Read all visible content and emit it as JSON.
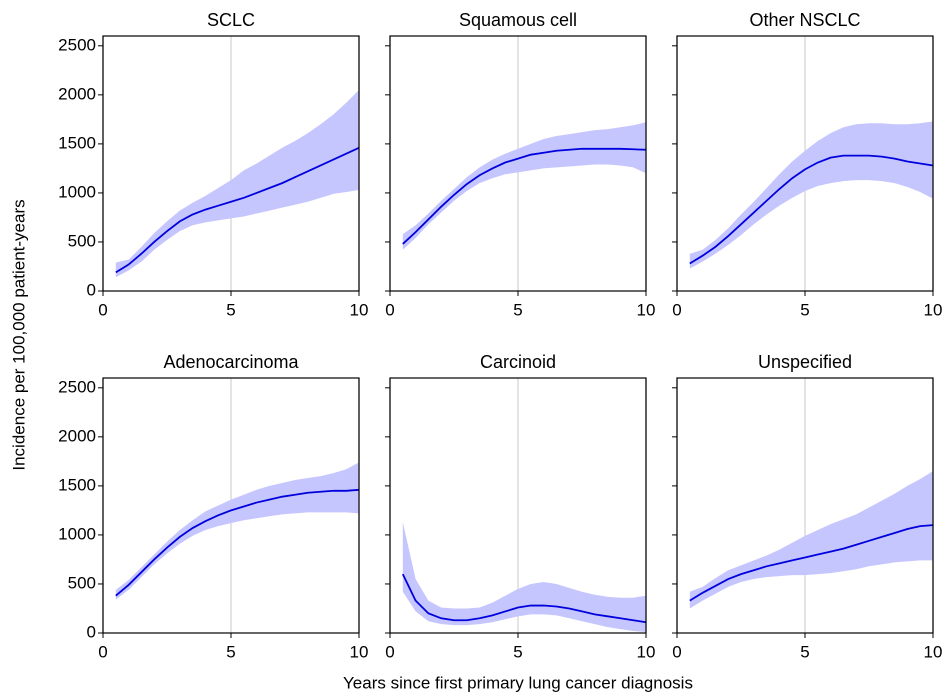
{
  "axis_labels": {
    "y": "Incidence per 100,000 patient-years",
    "x": "Years since first primary lung cancer diagnosis"
  },
  "chart_data": [
    {
      "type": "line",
      "title": "SCLC",
      "xlim": [
        0,
        10
      ],
      "ylim": [
        0,
        2600
      ],
      "xticks": [
        0,
        5,
        10
      ],
      "yticks": [
        0,
        500,
        1000,
        1500,
        2000,
        2500
      ],
      "grid": "x",
      "show_ytick_labels": true,
      "x": [
        0.5,
        1,
        1.5,
        2,
        2.5,
        3,
        3.5,
        4,
        4.5,
        5,
        5.5,
        6,
        6.5,
        7,
        7.5,
        8,
        8.5,
        9,
        9.5,
        10
      ],
      "series": [
        {
          "color": "#0000dd",
          "band_color": "#c6c6ff",
          "values": [
            190,
            270,
            380,
            500,
            610,
            710,
            780,
            830,
            870,
            910,
            950,
            1000,
            1050,
            1100,
            1160,
            1220,
            1280,
            1340,
            1400,
            1460
          ],
          "lower": [
            140,
            210,
            300,
            420,
            520,
            610,
            670,
            700,
            720,
            740,
            760,
            790,
            820,
            850,
            880,
            910,
            950,
            990,
            1010,
            1030
          ],
          "upper": [
            290,
            320,
            450,
            590,
            710,
            820,
            900,
            970,
            1050,
            1130,
            1230,
            1300,
            1380,
            1460,
            1530,
            1610,
            1700,
            1800,
            1920,
            2050
          ]
        }
      ]
    },
    {
      "type": "line",
      "title": "Squamous cell",
      "xlim": [
        0,
        10
      ],
      "ylim": [
        0,
        2600
      ],
      "xticks": [
        0,
        5,
        10
      ],
      "yticks": [
        0,
        500,
        1000,
        1500,
        2000,
        2500
      ],
      "grid": "x",
      "show_ytick_labels": false,
      "x": [
        0.5,
        1,
        1.5,
        2,
        2.5,
        3,
        3.5,
        4,
        4.5,
        5,
        5.5,
        6,
        6.5,
        7,
        7.5,
        8,
        8.5,
        9,
        9.5,
        10
      ],
      "series": [
        {
          "color": "#0000dd",
          "band_color": "#c6c6ff",
          "values": [
            480,
            600,
            730,
            860,
            980,
            1090,
            1180,
            1250,
            1310,
            1350,
            1390,
            1410,
            1430,
            1440,
            1450,
            1450,
            1450,
            1450,
            1445,
            1440
          ],
          "lower": [
            420,
            540,
            680,
            800,
            920,
            1020,
            1100,
            1150,
            1190,
            1210,
            1230,
            1250,
            1260,
            1270,
            1280,
            1290,
            1290,
            1280,
            1260,
            1200
          ],
          "upper": [
            580,
            670,
            790,
            920,
            1040,
            1160,
            1260,
            1340,
            1400,
            1450,
            1500,
            1550,
            1580,
            1600,
            1620,
            1640,
            1650,
            1670,
            1690,
            1720
          ]
        }
      ]
    },
    {
      "type": "line",
      "title": "Other NSCLC",
      "xlim": [
        0,
        10
      ],
      "ylim": [
        0,
        2600
      ],
      "xticks": [
        0,
        5,
        10
      ],
      "yticks": [
        0,
        500,
        1000,
        1500,
        2000,
        2500
      ],
      "grid": "x",
      "show_ytick_labels": false,
      "x": [
        0.5,
        1,
        1.5,
        2,
        2.5,
        3,
        3.5,
        4,
        4.5,
        5,
        5.5,
        6,
        6.5,
        7,
        7.5,
        8,
        8.5,
        9,
        9.5,
        10
      ],
      "series": [
        {
          "color": "#0000dd",
          "band_color": "#c6c6ff",
          "values": [
            280,
            360,
            450,
            560,
            680,
            800,
            920,
            1040,
            1150,
            1240,
            1310,
            1360,
            1380,
            1380,
            1380,
            1370,
            1350,
            1320,
            1300,
            1280
          ],
          "lower": [
            230,
            300,
            380,
            470,
            570,
            680,
            780,
            870,
            950,
            1020,
            1070,
            1100,
            1120,
            1130,
            1130,
            1120,
            1100,
            1060,
            1010,
            940
          ],
          "upper": [
            380,
            420,
            520,
            640,
            780,
            910,
            1050,
            1190,
            1320,
            1430,
            1530,
            1610,
            1670,
            1700,
            1710,
            1710,
            1700,
            1700,
            1710,
            1730
          ]
        }
      ]
    },
    {
      "type": "line",
      "title": "Adenocarcinoma",
      "xlim": [
        0,
        10
      ],
      "ylim": [
        0,
        2600
      ],
      "xticks": [
        0,
        5,
        10
      ],
      "yticks": [
        0,
        500,
        1000,
        1500,
        2000,
        2500
      ],
      "grid": "x",
      "show_ytick_labels": true,
      "x": [
        0.5,
        1,
        1.5,
        2,
        2.5,
        3,
        3.5,
        4,
        4.5,
        5,
        5.5,
        6,
        6.5,
        7,
        7.5,
        8,
        8.5,
        9,
        9.5,
        10
      ],
      "series": [
        {
          "color": "#0000dd",
          "band_color": "#c6c6ff",
          "values": [
            380,
            490,
            620,
            750,
            870,
            980,
            1070,
            1140,
            1200,
            1250,
            1290,
            1330,
            1360,
            1390,
            1410,
            1430,
            1440,
            1450,
            1450,
            1460
          ],
          "lower": [
            340,
            440,
            570,
            700,
            810,
            910,
            990,
            1050,
            1090,
            1120,
            1150,
            1170,
            1190,
            1210,
            1220,
            1230,
            1230,
            1230,
            1230,
            1220
          ],
          "upper": [
            440,
            540,
            670,
            800,
            930,
            1050,
            1150,
            1240,
            1300,
            1360,
            1410,
            1460,
            1500,
            1530,
            1560,
            1580,
            1600,
            1630,
            1670,
            1740
          ]
        }
      ]
    },
    {
      "type": "line",
      "title": "Carcinoid",
      "xlim": [
        0,
        10
      ],
      "ylim": [
        0,
        2600
      ],
      "xticks": [
        0,
        5,
        10
      ],
      "yticks": [
        0,
        500,
        1000,
        1500,
        2000,
        2500
      ],
      "grid": "x",
      "show_ytick_labels": false,
      "x": [
        0.5,
        1,
        1.5,
        2,
        2.5,
        3,
        3.5,
        4,
        4.5,
        5,
        5.5,
        6,
        6.5,
        7,
        7.5,
        8,
        8.5,
        9,
        9.5,
        10
      ],
      "series": [
        {
          "color": "#0000dd",
          "band_color": "#c6c6ff",
          "values": [
            600,
            330,
            200,
            150,
            130,
            130,
            150,
            180,
            220,
            260,
            280,
            280,
            270,
            250,
            220,
            190,
            170,
            150,
            130,
            110
          ],
          "lower": [
            420,
            220,
            120,
            90,
            80,
            80,
            90,
            110,
            140,
            170,
            190,
            190,
            180,
            150,
            120,
            90,
            60,
            40,
            20,
            10
          ],
          "upper": [
            1130,
            550,
            330,
            260,
            250,
            250,
            260,
            310,
            380,
            450,
            500,
            520,
            500,
            460,
            420,
            390,
            370,
            360,
            360,
            380
          ]
        }
      ]
    },
    {
      "type": "line",
      "title": "Unspecified",
      "xlim": [
        0,
        10
      ],
      "ylim": [
        0,
        2600
      ],
      "xticks": [
        0,
        5,
        10
      ],
      "yticks": [
        0,
        500,
        1000,
        1500,
        2000,
        2500
      ],
      "grid": "x",
      "show_ytick_labels": false,
      "x": [
        0.5,
        1,
        1.5,
        2,
        2.5,
        3,
        3.5,
        4,
        4.5,
        5,
        5.5,
        6,
        6.5,
        7,
        7.5,
        8,
        8.5,
        9,
        9.5,
        10
      ],
      "series": [
        {
          "color": "#0000dd",
          "band_color": "#c6c6ff",
          "values": [
            330,
            410,
            480,
            550,
            600,
            640,
            680,
            710,
            740,
            770,
            800,
            830,
            860,
            900,
            940,
            980,
            1020,
            1060,
            1090,
            1100
          ],
          "lower": [
            250,
            330,
            400,
            470,
            520,
            550,
            570,
            580,
            590,
            590,
            600,
            610,
            630,
            650,
            680,
            700,
            720,
            730,
            740,
            740
          ],
          "upper": [
            420,
            470,
            560,
            640,
            690,
            740,
            790,
            850,
            920,
            990,
            1050,
            1110,
            1160,
            1210,
            1280,
            1350,
            1420,
            1500,
            1570,
            1650
          ]
        }
      ]
    }
  ]
}
